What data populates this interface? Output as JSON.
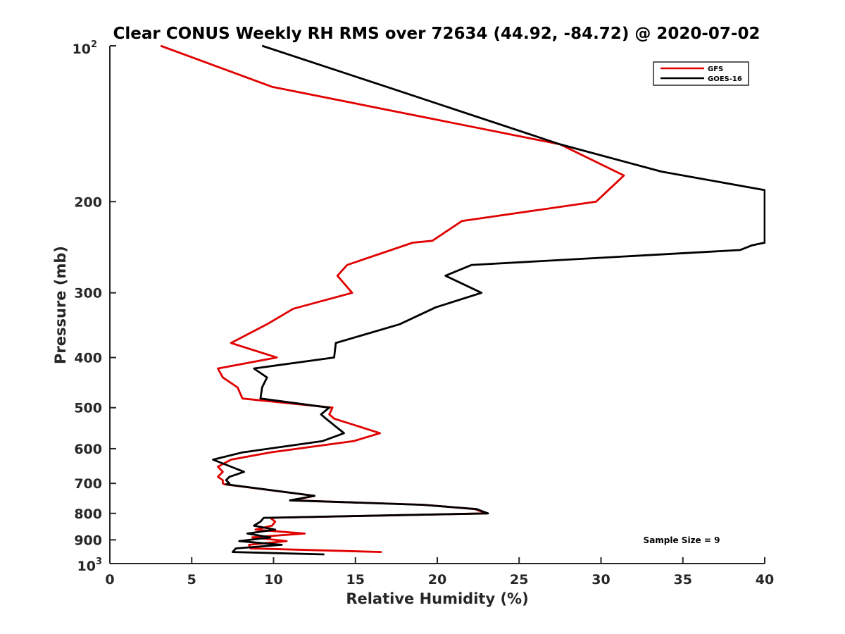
{
  "chart_data": {
    "type": "line",
    "title": "Clear CONUS Weekly RH RMS over 72634 (44.92, -84.72) @ 2020-07-02",
    "xlabel": "Relative Humidity (%)",
    "ylabel": "Pressure (mb)",
    "xlim": [
      0,
      40
    ],
    "ylim": [
      100,
      1000
    ],
    "yscale": "log",
    "y_reversed": true,
    "grid": false,
    "legend_position": "top-right",
    "xticks": [
      0,
      5,
      10,
      15,
      20,
      25,
      30,
      35,
      40
    ],
    "xtick_labels": [
      "0",
      "5",
      "10",
      "15",
      "20",
      "25",
      "30",
      "35",
      "40"
    ],
    "yticks_major": [
      100,
      1000
    ],
    "ytick_major_labels": [
      {
        "base": "10",
        "exp": "2"
      },
      {
        "base": "10",
        "exp": "3"
      }
    ],
    "yticks": [
      200,
      300,
      400,
      500,
      600,
      700,
      800,
      900
    ],
    "ytick_labels": [
      "200",
      "300",
      "400",
      "500",
      "600",
      "700",
      "800",
      "900"
    ],
    "annotation": "Sample Size = 9",
    "series": [
      {
        "name": "GFS",
        "color": "#e00000",
        "x": [
          3.1,
          9.9,
          27.5,
          31.4,
          29.7,
          21.5,
          19.7,
          18.5,
          14.5,
          13.9,
          14.8,
          11.2,
          9.6,
          7.4,
          10.2,
          6.6,
          6.9,
          7.8,
          8.1,
          13.6,
          13.4,
          13.7,
          16.5,
          14.9,
          9.8,
          7.4,
          6.6,
          6.9,
          6.6,
          6.9,
          6.9,
          7.0,
          12.5,
          11.2,
          19.2,
          22.3,
          23.0,
          9.8,
          10.1,
          9.9,
          8.9,
          11.9,
          8.7,
          10.8,
          8.5,
          8.6,
          16.6
        ],
        "y": [
          100,
          120,
          155,
          178,
          200,
          218,
          238,
          240,
          265,
          278,
          300,
          322,
          345,
          375,
          400,
          420,
          437,
          457,
          480,
          500,
          515,
          525,
          560,
          580,
          610,
          630,
          650,
          665,
          680,
          690,
          700,
          703,
          740,
          755,
          770,
          785,
          800,
          816,
          830,
          845,
          860,
          875,
          890,
          905,
          920,
          935,
          950
        ]
      },
      {
        "name": "GOES-16",
        "color": "#000000",
        "x": [
          9.3,
          16.9,
          27.5,
          33.7,
          40.0,
          40.0,
          39.2,
          38.5,
          22.1,
          20.5,
          22.7,
          19.9,
          17.7,
          13.8,
          13.7,
          8.8,
          9.6,
          9.3,
          9.2,
          13.4,
          12.9,
          13.2,
          14.3,
          13.0,
          8.1,
          6.3,
          7.4,
          8.2,
          7.3,
          7.1,
          7.3,
          7.1,
          12.5,
          11.0,
          19.1,
          22.4,
          23.1,
          9.4,
          9.2,
          8.8,
          10.1,
          8.4,
          9.8,
          7.9,
          10.5,
          7.7,
          7.5,
          13.1
        ],
        "y": [
          100,
          120,
          155,
          175,
          190,
          240,
          243,
          248,
          265,
          278,
          300,
          320,
          345,
          375,
          400,
          420,
          437,
          457,
          480,
          500,
          515,
          525,
          560,
          580,
          610,
          630,
          650,
          665,
          680,
          690,
          700,
          703,
          740,
          755,
          770,
          785,
          800,
          816,
          830,
          845,
          860,
          875,
          890,
          905,
          920,
          935,
          950,
          960
        ]
      }
    ]
  }
}
